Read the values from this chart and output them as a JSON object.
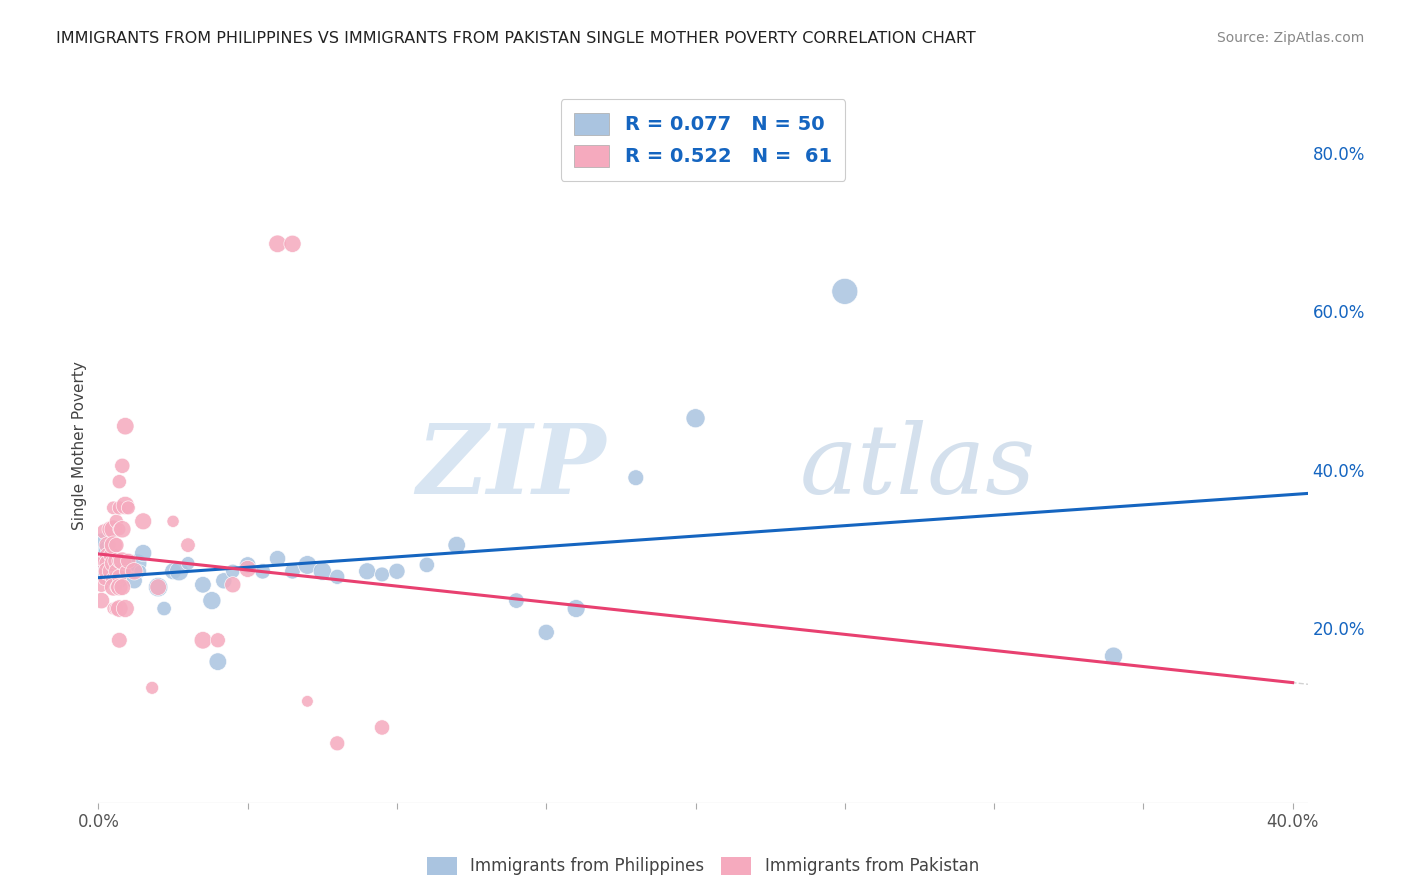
{
  "title": "IMMIGRANTS FROM PHILIPPINES VS IMMIGRANTS FROM PAKISTAN SINGLE MOTHER POVERTY CORRELATION CHART",
  "source": "Source: ZipAtlas.com",
  "ylabel": "Single Mother Poverty",
  "legend_philippines": "Immigrants from Philippines",
  "legend_pakistan": "Immigrants from Pakistan",
  "R_philippines": 0.077,
  "N_philippines": 50,
  "R_pakistan": 0.522,
  "N_pakistan": 61,
  "philippines_color": "#aac4e0",
  "pakistan_color": "#f5aabe",
  "trend_philippines_color": "#1565c0",
  "trend_pakistan_color": "#e84070",
  "philippines_points": [
    [
      0.001,
      0.305
    ],
    [
      0.002,
      0.285
    ],
    [
      0.002,
      0.275
    ],
    [
      0.003,
      0.3
    ],
    [
      0.003,
      0.27
    ],
    [
      0.004,
      0.282
    ],
    [
      0.004,
      0.262
    ],
    [
      0.005,
      0.272
    ],
    [
      0.005,
      0.292
    ],
    [
      0.006,
      0.28
    ],
    [
      0.006,
      0.268
    ],
    [
      0.007,
      0.278
    ],
    [
      0.007,
      0.26
    ],
    [
      0.008,
      0.272
    ],
    [
      0.009,
      0.28
    ],
    [
      0.01,
      0.28
    ],
    [
      0.011,
      0.27
    ],
    [
      0.012,
      0.26
    ],
    [
      0.013,
      0.282
    ],
    [
      0.014,
      0.272
    ],
    [
      0.015,
      0.295
    ],
    [
      0.02,
      0.252
    ],
    [
      0.022,
      0.225
    ],
    [
      0.025,
      0.272
    ],
    [
      0.027,
      0.272
    ],
    [
      0.03,
      0.282
    ],
    [
      0.035,
      0.255
    ],
    [
      0.038,
      0.235
    ],
    [
      0.04,
      0.158
    ],
    [
      0.042,
      0.26
    ],
    [
      0.045,
      0.272
    ],
    [
      0.05,
      0.28
    ],
    [
      0.055,
      0.272
    ],
    [
      0.06,
      0.288
    ],
    [
      0.065,
      0.272
    ],
    [
      0.07,
      0.28
    ],
    [
      0.075,
      0.272
    ],
    [
      0.08,
      0.265
    ],
    [
      0.09,
      0.272
    ],
    [
      0.095,
      0.268
    ],
    [
      0.1,
      0.272
    ],
    [
      0.11,
      0.28
    ],
    [
      0.12,
      0.305
    ],
    [
      0.14,
      0.235
    ],
    [
      0.15,
      0.195
    ],
    [
      0.16,
      0.225
    ],
    [
      0.18,
      0.39
    ],
    [
      0.2,
      0.465
    ],
    [
      0.25,
      0.625
    ],
    [
      0.34,
      0.165
    ]
  ],
  "pakistan_points": [
    [
      0.001,
      0.285
    ],
    [
      0.001,
      0.255
    ],
    [
      0.001,
      0.235
    ],
    [
      0.002,
      0.322
    ],
    [
      0.002,
      0.285
    ],
    [
      0.002,
      0.272
    ],
    [
      0.002,
      0.262
    ],
    [
      0.003,
      0.305
    ],
    [
      0.003,
      0.292
    ],
    [
      0.003,
      0.282
    ],
    [
      0.003,
      0.272
    ],
    [
      0.004,
      0.325
    ],
    [
      0.004,
      0.305
    ],
    [
      0.004,
      0.292
    ],
    [
      0.004,
      0.272
    ],
    [
      0.005,
      0.352
    ],
    [
      0.005,
      0.325
    ],
    [
      0.005,
      0.305
    ],
    [
      0.005,
      0.282
    ],
    [
      0.005,
      0.262
    ],
    [
      0.005,
      0.252
    ],
    [
      0.005,
      0.225
    ],
    [
      0.006,
      0.335
    ],
    [
      0.006,
      0.305
    ],
    [
      0.006,
      0.285
    ],
    [
      0.006,
      0.272
    ],
    [
      0.006,
      0.252
    ],
    [
      0.006,
      0.225
    ],
    [
      0.007,
      0.385
    ],
    [
      0.007,
      0.352
    ],
    [
      0.007,
      0.325
    ],
    [
      0.007,
      0.285
    ],
    [
      0.007,
      0.265
    ],
    [
      0.007,
      0.252
    ],
    [
      0.007,
      0.225
    ],
    [
      0.007,
      0.185
    ],
    [
      0.008,
      0.405
    ],
    [
      0.008,
      0.325
    ],
    [
      0.008,
      0.285
    ],
    [
      0.008,
      0.252
    ],
    [
      0.009,
      0.455
    ],
    [
      0.009,
      0.355
    ],
    [
      0.009,
      0.272
    ],
    [
      0.009,
      0.225
    ],
    [
      0.01,
      0.352
    ],
    [
      0.01,
      0.285
    ],
    [
      0.012,
      0.272
    ],
    [
      0.015,
      0.335
    ],
    [
      0.018,
      0.125
    ],
    [
      0.02,
      0.252
    ],
    [
      0.025,
      0.335
    ],
    [
      0.03,
      0.305
    ],
    [
      0.035,
      0.185
    ],
    [
      0.04,
      0.185
    ],
    [
      0.045,
      0.255
    ],
    [
      0.05,
      0.275
    ],
    [
      0.06,
      0.685
    ],
    [
      0.065,
      0.685
    ],
    [
      0.07,
      0.108
    ],
    [
      0.08,
      0.055
    ],
    [
      0.095,
      0.075
    ]
  ],
  "xlim": [
    0.0,
    0.405
  ],
  "ylim": [
    -0.02,
    0.88
  ],
  "xtick_vals": [
    0.0,
    0.05,
    0.1,
    0.15,
    0.2,
    0.25,
    0.3,
    0.35,
    0.4
  ],
  "right_ytick_vals": [
    0.2,
    0.4,
    0.6,
    0.8
  ],
  "right_ytick_labels": [
    "20.0%",
    "40.0%",
    "60.0%",
    "80.0%"
  ],
  "grid_color": "#cccccc",
  "background_color": "#ffffff"
}
